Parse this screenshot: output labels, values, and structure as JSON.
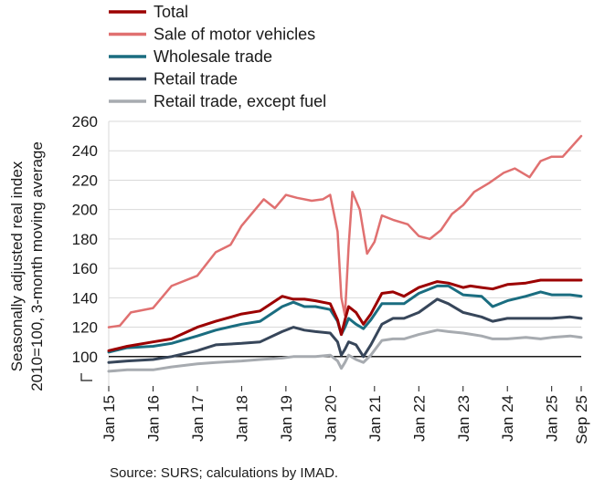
{
  "chart_data": {
    "type": "line",
    "title": "",
    "ylabel_line1": "Seasonally adjusted real index",
    "ylabel_line2": "2010=100, 3-month moving average",
    "xlabel": "",
    "ylim": [
      80,
      260
    ],
    "yticks": [
      260,
      240,
      220,
      200,
      180,
      160,
      140,
      120,
      100
    ],
    "y_axis_break": true,
    "reference_line": 100,
    "grid": "horizontal",
    "legend_position": "top",
    "x_tick_labels": [
      "Jan 15",
      "Jan 16",
      "Jan 17",
      "Jan 18",
      "Jan 19",
      "Jan 20",
      "Jan 21",
      "Jan 22",
      "Jan 23",
      "Jan 24",
      "Jan 25",
      "Sep 25"
    ],
    "x_tick_positions": [
      "2015-01",
      "2016-01",
      "2017-01",
      "2018-01",
      "2019-01",
      "2020-01",
      "2021-01",
      "2022-01",
      "2023-01",
      "2024-01",
      "2025-01",
      "2025-09"
    ],
    "x_range": [
      "2015-01",
      "2025-09"
    ],
    "series": [
      {
        "name": "Total",
        "color": "#9c0000",
        "width": 3,
        "x": [
          "2015-01",
          "2015-06",
          "2016-01",
          "2016-06",
          "2017-01",
          "2017-06",
          "2018-01",
          "2018-06",
          "2018-12",
          "2019-03",
          "2019-06",
          "2019-09",
          "2020-01",
          "2020-03",
          "2020-04",
          "2020-05",
          "2020-06",
          "2020-08",
          "2020-10",
          "2020-12",
          "2021-03",
          "2021-06",
          "2021-09",
          "2022-01",
          "2022-06",
          "2022-09",
          "2023-01",
          "2023-03",
          "2023-06",
          "2023-09",
          "2024-01",
          "2024-06",
          "2024-10",
          "2025-01",
          "2025-06",
          "2025-09"
        ],
        "values": [
          104,
          107,
          110,
          112,
          120,
          124,
          129,
          131,
          141,
          139,
          139,
          138,
          136,
          125,
          115,
          125,
          134,
          130,
          122,
          129,
          143,
          144,
          141,
          147,
          151,
          150,
          147,
          148,
          147,
          146,
          149,
          150,
          152,
          152,
          152,
          152
        ]
      },
      {
        "name": "Sale of motor vehicles",
        "color": "#e07070",
        "width": 2.5,
        "x": [
          "2015-01",
          "2015-04",
          "2015-07",
          "2016-01",
          "2016-06",
          "2017-01",
          "2017-06",
          "2017-10",
          "2018-01",
          "2018-04",
          "2018-07",
          "2018-10",
          "2019-01",
          "2019-04",
          "2019-08",
          "2019-11",
          "2020-01",
          "2020-03",
          "2020-04",
          "2020-05",
          "2020-06",
          "2020-07",
          "2020-09",
          "2020-11",
          "2021-01",
          "2021-03",
          "2021-06",
          "2021-10",
          "2022-01",
          "2022-04",
          "2022-07",
          "2022-10",
          "2023-01",
          "2023-04",
          "2023-08",
          "2023-12",
          "2024-03",
          "2024-07",
          "2024-10",
          "2025-01",
          "2025-04",
          "2025-09"
        ],
        "values": [
          120,
          121,
          130,
          133,
          148,
          155,
          171,
          176,
          189,
          198,
          207,
          201,
          210,
          208,
          206,
          207,
          210,
          185,
          140,
          128,
          175,
          212,
          200,
          170,
          178,
          196,
          193,
          190,
          182,
          180,
          186,
          197,
          203,
          212,
          218,
          225,
          228,
          222,
          233,
          236,
          236,
          250
        ]
      },
      {
        "name": "Wholesale trade",
        "color": "#1a6d80",
        "width": 3,
        "x": [
          "2015-01",
          "2015-06",
          "2016-01",
          "2016-06",
          "2017-01",
          "2017-06",
          "2018-01",
          "2018-06",
          "2018-12",
          "2019-03",
          "2019-06",
          "2019-09",
          "2020-01",
          "2020-03",
          "2020-04",
          "2020-05",
          "2020-06",
          "2020-08",
          "2020-10",
          "2020-12",
          "2021-03",
          "2021-06",
          "2021-09",
          "2022-01",
          "2022-06",
          "2022-09",
          "2023-01",
          "2023-06",
          "2023-09",
          "2024-01",
          "2024-06",
          "2024-10",
          "2025-01",
          "2025-06",
          "2025-09"
        ],
        "values": [
          103,
          106,
          107,
          109,
          114,
          118,
          122,
          124,
          134,
          137,
          134,
          134,
          132,
          124,
          115,
          120,
          126,
          122,
          119,
          125,
          136,
          136,
          136,
          143,
          148,
          148,
          142,
          141,
          134,
          138,
          141,
          144,
          142,
          142,
          141
        ]
      },
      {
        "name": "Retail trade",
        "color": "#37465a",
        "width": 3,
        "x": [
          "2015-01",
          "2015-06",
          "2016-01",
          "2016-06",
          "2017-01",
          "2017-06",
          "2018-01",
          "2018-06",
          "2018-12",
          "2019-03",
          "2019-06",
          "2019-09",
          "2020-01",
          "2020-03",
          "2020-04",
          "2020-05",
          "2020-06",
          "2020-08",
          "2020-10",
          "2020-12",
          "2021-03",
          "2021-06",
          "2021-09",
          "2022-01",
          "2022-06",
          "2022-09",
          "2023-01",
          "2023-06",
          "2023-09",
          "2024-01",
          "2024-06",
          "2024-10",
          "2025-01",
          "2025-06",
          "2025-09"
        ],
        "values": [
          96,
          97,
          98,
          100,
          104,
          108,
          109,
          110,
          117,
          120,
          118,
          117,
          116,
          110,
          101,
          105,
          110,
          108,
          100,
          108,
          122,
          126,
          126,
          130,
          139,
          136,
          130,
          127,
          124,
          126,
          126,
          126,
          126,
          127,
          126
        ]
      },
      {
        "name": "Retail trade, except fuel",
        "color": "#a7abb0",
        "width": 3,
        "x": [
          "2015-01",
          "2015-06",
          "2016-01",
          "2016-06",
          "2017-01",
          "2017-06",
          "2018-01",
          "2018-06",
          "2018-12",
          "2019-03",
          "2019-06",
          "2019-09",
          "2020-01",
          "2020-03",
          "2020-04",
          "2020-05",
          "2020-06",
          "2020-08",
          "2020-10",
          "2020-12",
          "2021-03",
          "2021-06",
          "2021-09",
          "2022-01",
          "2022-06",
          "2022-09",
          "2023-01",
          "2023-06",
          "2023-09",
          "2024-01",
          "2024-06",
          "2024-10",
          "2025-01",
          "2025-06",
          "2025-09"
        ],
        "values": [
          90,
          91,
          91,
          93,
          95,
          96,
          97,
          98,
          99,
          100,
          100,
          100,
          101,
          97,
          92,
          96,
          101,
          98,
          96,
          101,
          111,
          112,
          112,
          115,
          118,
          117,
          116,
          114,
          112,
          112,
          113,
          112,
          113,
          114,
          113
        ]
      }
    ]
  },
  "source_note": "Source: SURS; calculations by IMAD."
}
